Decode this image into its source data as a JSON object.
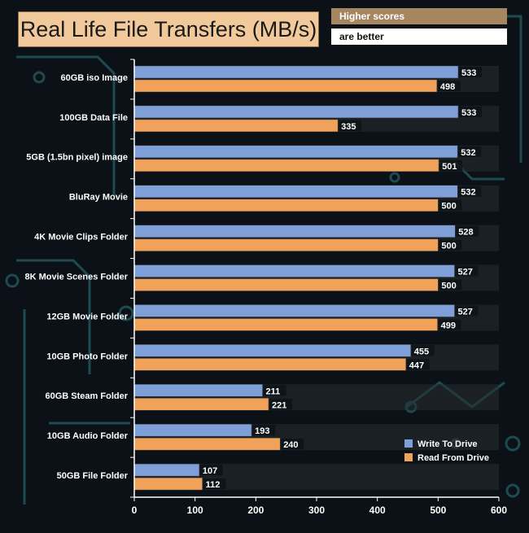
{
  "header": {
    "title": "Real Life File Transfers (MB/s)",
    "note_line1": "Higher scores",
    "note_line2": "are better"
  },
  "colors": {
    "background": "#0b1116",
    "write": "#7f9fd8",
    "read": "#f0a25a",
    "axis": "#ffffff",
    "band": "#2a2e33"
  },
  "chart_data": {
    "type": "bar",
    "orientation": "horizontal",
    "title": "Real Life File Transfers (MB/s)",
    "xlim": [
      0,
      600
    ],
    "x_ticks": [
      0,
      100,
      200,
      300,
      400,
      500,
      600
    ],
    "grid": false,
    "legend_position": "bottom-right",
    "categories": [
      "60GB iso Image",
      "100GB Data File",
      "5GB (1.5bn pixel) image",
      "BluRay Movie",
      "4K Movie Clips Folder",
      "8K Movie Scenes Folder",
      "12GB Movie Folder",
      "10GB Photo Folder",
      "60GB Steam Folder",
      "10GB Audio Folder",
      "50GB File Folder"
    ],
    "series": [
      {
        "name": "Write To  Drive",
        "color": "#7f9fd8",
        "values": [
          533,
          533,
          532,
          532,
          528,
          527,
          527,
          455,
          211,
          193,
          107
        ]
      },
      {
        "name": "Read From  Drive",
        "color": "#f0a25a",
        "values": [
          498,
          335,
          501,
          500,
          500,
          500,
          499,
          447,
          221,
          240,
          112
        ]
      }
    ]
  }
}
